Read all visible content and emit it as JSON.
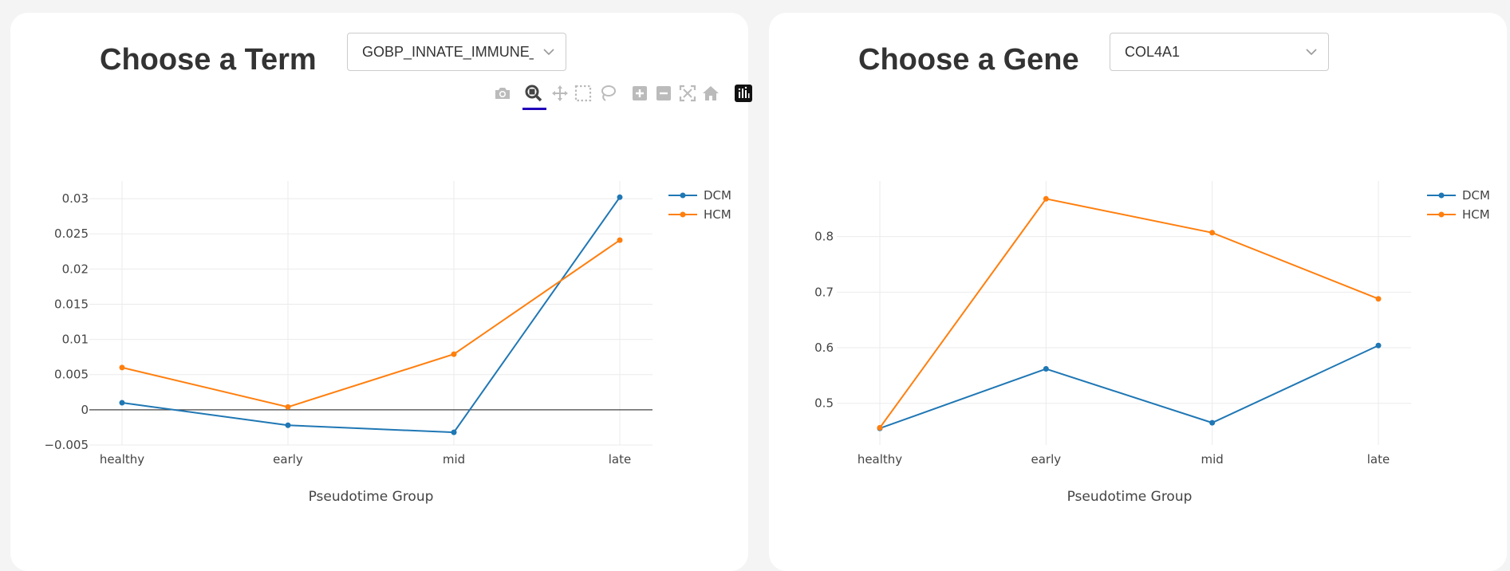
{
  "left_panel": {
    "title": "Choose a Term",
    "dropdown_value": "GOBP_INNATE_IMMUNE_RESPONSE"
  },
  "right_panel": {
    "title": "Choose a Gene",
    "dropdown_value": "COL4A1"
  },
  "modebar": {
    "icons": [
      "camera-icon",
      "zoom-icon",
      "pan-icon",
      "box-select-icon",
      "lasso-icon",
      "zoom-in-icon",
      "zoom-out-icon",
      "autoscale-icon",
      "reset-axes-icon",
      "plotly-logo-icon"
    ],
    "active": "zoom-icon",
    "active_color": "#1f00b8"
  },
  "colors": {
    "DCM": "#1f77b4",
    "HCM": "#ff7f0e"
  },
  "chart_data": [
    {
      "type": "line",
      "categories": [
        "healthy",
        "early",
        "mid",
        "late"
      ],
      "series": [
        {
          "name": "DCM",
          "values": [
            0.001,
            -0.0022,
            -0.0032,
            0.0302
          ]
        },
        {
          "name": "HCM",
          "values": [
            0.006,
            0.0004,
            0.0079,
            0.0241
          ]
        }
      ],
      "xlabel": "Pseudotime Group",
      "ylabel": "",
      "ylim": [
        -0.005,
        0.0325
      ],
      "yticks": [
        -0.005,
        0,
        0.005,
        0.01,
        0.015,
        0.02,
        0.025,
        0.03
      ],
      "ytick_labels": [
        "−0.005",
        "0",
        "0.005",
        "0.01",
        "0.015",
        "0.02",
        "0.025",
        "0.03"
      ],
      "zeroline": true,
      "grid": true,
      "legend": "top-right"
    },
    {
      "type": "line",
      "categories": [
        "healthy",
        "early",
        "mid",
        "late"
      ],
      "series": [
        {
          "name": "DCM",
          "values": [
            0.455,
            0.562,
            0.465,
            0.604
          ]
        },
        {
          "name": "HCM",
          "values": [
            0.456,
            0.868,
            0.807,
            0.688
          ]
        }
      ],
      "xlabel": "Pseudotime Group",
      "ylabel": "",
      "ylim": [
        0.425,
        0.9
      ],
      "yticks": [
        0.5,
        0.6,
        0.7,
        0.8
      ],
      "ytick_labels": [
        "0.5",
        "0.6",
        "0.7",
        "0.8"
      ],
      "zeroline": false,
      "grid": true,
      "legend": "top-right"
    }
  ]
}
